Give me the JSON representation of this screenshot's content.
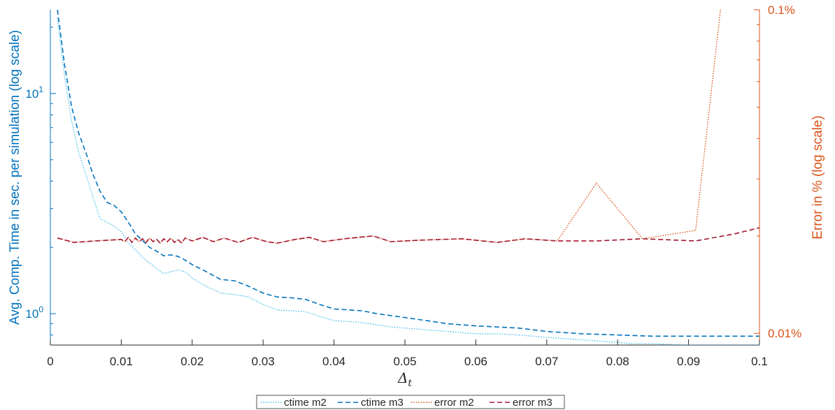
{
  "chart_data": {
    "type": "line",
    "xlabel": "Δ",
    "xlabel_sub": "t",
    "ylabel_left": "Avg. Comp. Time in sec. per simulation (log scale)",
    "ylabel_right": "Error in % (log scale)",
    "xlim": [
      0,
      0.1
    ],
    "x_ticks": [
      0,
      0.01,
      0.02,
      0.03,
      0.04,
      0.05,
      0.06,
      0.07,
      0.08,
      0.09,
      0.1
    ],
    "x_tick_labels": [
      "0",
      "0.01",
      "0.02",
      "0.03",
      "0.04",
      "0.05",
      "0.06",
      "0.07",
      "0.08",
      "0.09",
      "0.1"
    ],
    "yleft_scale": "log",
    "yleft_lim": [
      0.72,
      24
    ],
    "yleft_tick_labels": [
      {
        "value": 1,
        "label": "10",
        "exp": "0"
      },
      {
        "value": 10,
        "label": "10",
        "exp": "1"
      }
    ],
    "yright_scale": "log",
    "yright_lim": [
      0.0092,
      0.1
    ],
    "yright_tick_labels": [
      {
        "value": 0.01,
        "label": "0.01%"
      },
      {
        "value": 0.1,
        "label": "0.1%"
      }
    ],
    "colors": {
      "ctime_m2": "#4dbeee",
      "ctime_m3": "#0072bd",
      "error_m2": "#d95319",
      "error_m3": "#a2142f",
      "left_axis": "#0072bd",
      "right_axis": "#d95319",
      "bottom_axis": "#262626"
    },
    "legend": {
      "placement": "bottom-center",
      "entries": [
        "ctime m2",
        "ctime m3",
        "error m2",
        "error m3"
      ]
    },
    "series": [
      {
        "name": "ctime m2",
        "axis": "left",
        "style": "dotted",
        "color_key": "ctime_m2",
        "x": [
          0.001,
          0.002,
          0.003,
          0.004,
          0.005,
          0.006,
          0.007,
          0.008,
          0.009,
          0.01,
          0.011,
          0.012,
          0.013,
          0.014,
          0.015,
          0.016,
          0.017,
          0.018,
          0.019,
          0.02,
          0.022,
          0.024,
          0.026,
          0.028,
          0.03,
          0.032,
          0.034,
          0.036,
          0.038,
          0.04,
          0.042,
          0.044,
          0.046,
          0.048,
          0.05,
          0.052,
          0.054,
          0.056,
          0.058,
          0.06,
          0.063,
          0.066,
          0.07,
          0.075,
          0.08,
          0.082,
          0.085,
          0.09,
          0.095,
          0.1
        ],
        "y": [
          22.0,
          12.0,
          7.5,
          5.4,
          4.3,
          3.4,
          2.7,
          2.6,
          2.5,
          2.35,
          2.1,
          1.95,
          1.8,
          1.7,
          1.6,
          1.52,
          1.55,
          1.58,
          1.55,
          1.45,
          1.33,
          1.24,
          1.22,
          1.19,
          1.1,
          1.04,
          1.03,
          1.02,
          0.97,
          0.93,
          0.92,
          0.91,
          0.89,
          0.87,
          0.86,
          0.85,
          0.84,
          0.83,
          0.82,
          0.81,
          0.81,
          0.8,
          0.78,
          0.76,
          0.74,
          0.73,
          0.73,
          0.72,
          0.72,
          0.72
        ]
      },
      {
        "name": "ctime m3",
        "axis": "left",
        "style": "dashed",
        "color_key": "ctime_m3",
        "x": [
          0.001,
          0.002,
          0.003,
          0.004,
          0.005,
          0.006,
          0.007,
          0.008,
          0.009,
          0.01,
          0.011,
          0.012,
          0.013,
          0.014,
          0.015,
          0.016,
          0.017,
          0.018,
          0.019,
          0.02,
          0.022,
          0.024,
          0.026,
          0.028,
          0.03,
          0.032,
          0.034,
          0.036,
          0.038,
          0.04,
          0.042,
          0.044,
          0.046,
          0.048,
          0.05,
          0.052,
          0.054,
          0.056,
          0.058,
          0.06,
          0.063,
          0.066,
          0.07,
          0.075,
          0.08,
          0.085,
          0.09,
          0.095,
          0.1
        ],
        "y": [
          24.0,
          13.5,
          8.7,
          6.6,
          5.4,
          4.3,
          3.6,
          3.2,
          3.1,
          2.9,
          2.6,
          2.3,
          2.15,
          2.0,
          1.92,
          1.83,
          1.85,
          1.82,
          1.75,
          1.67,
          1.55,
          1.43,
          1.41,
          1.33,
          1.24,
          1.19,
          1.18,
          1.16,
          1.1,
          1.05,
          1.04,
          1.03,
          1.0,
          0.98,
          0.96,
          0.94,
          0.92,
          0.9,
          0.89,
          0.88,
          0.87,
          0.86,
          0.83,
          0.81,
          0.8,
          0.79,
          0.79,
          0.79,
          0.79
        ]
      },
      {
        "name": "error m2",
        "axis": "right",
        "style": "dotted",
        "color_key": "error_m2",
        "x": [
          0.001,
          0.0033,
          0.0063,
          0.01,
          0.0105,
          0.011,
          0.0115,
          0.012,
          0.0125,
          0.013,
          0.0135,
          0.014,
          0.0145,
          0.015,
          0.0155,
          0.016,
          0.0165,
          0.017,
          0.0175,
          0.018,
          0.0185,
          0.019,
          0.02,
          0.0215,
          0.023,
          0.0245,
          0.0265,
          0.0285,
          0.0305,
          0.032,
          0.0345,
          0.0365,
          0.0385,
          0.0415,
          0.0455,
          0.048,
          0.052,
          0.058,
          0.063,
          0.067,
          0.0715,
          0.077,
          0.0835,
          0.091,
          0.0945
        ],
        "y": [
          0.0197,
          0.0191,
          0.0193,
          0.0195,
          0.0192,
          0.0198,
          0.0191,
          0.0197,
          0.0192,
          0.0196,
          0.0191,
          0.0197,
          0.0192,
          0.0195,
          0.019,
          0.0196,
          0.0192,
          0.0197,
          0.0191,
          0.0195,
          0.019,
          0.0197,
          0.0193,
          0.0198,
          0.0192,
          0.0197,
          0.0191,
          0.0198,
          0.0192,
          0.019,
          0.0195,
          0.0198,
          0.0192,
          0.0196,
          0.02,
          0.0192,
          0.0194,
          0.0196,
          0.0191,
          0.0196,
          0.0193,
          0.0291,
          0.0196,
          0.0208,
          0.1
        ]
      },
      {
        "name": "error m3",
        "axis": "right",
        "style": "dashed",
        "color_key": "error_m3",
        "x": [
          0.001,
          0.0033,
          0.0063,
          0.01,
          0.0105,
          0.011,
          0.0115,
          0.012,
          0.0125,
          0.013,
          0.0135,
          0.014,
          0.0145,
          0.015,
          0.0155,
          0.016,
          0.0165,
          0.017,
          0.0175,
          0.018,
          0.0185,
          0.019,
          0.02,
          0.0215,
          0.023,
          0.0245,
          0.0265,
          0.0285,
          0.0305,
          0.032,
          0.0345,
          0.0365,
          0.0385,
          0.0415,
          0.0455,
          0.048,
          0.052,
          0.058,
          0.063,
          0.067,
          0.0715,
          0.077,
          0.0835,
          0.091,
          0.0965,
          0.1
        ],
        "y": [
          0.0197,
          0.0191,
          0.0193,
          0.0195,
          0.0192,
          0.0198,
          0.0191,
          0.0197,
          0.0192,
          0.0196,
          0.0191,
          0.0197,
          0.0192,
          0.0195,
          0.019,
          0.0196,
          0.0192,
          0.0197,
          0.0191,
          0.0195,
          0.019,
          0.0197,
          0.0193,
          0.0198,
          0.0192,
          0.0197,
          0.0191,
          0.0198,
          0.0192,
          0.019,
          0.0195,
          0.0198,
          0.0192,
          0.0196,
          0.02,
          0.0192,
          0.0194,
          0.0196,
          0.0191,
          0.0196,
          0.0193,
          0.0193,
          0.0196,
          0.0193,
          0.0203,
          0.0212
        ]
      }
    ]
  }
}
